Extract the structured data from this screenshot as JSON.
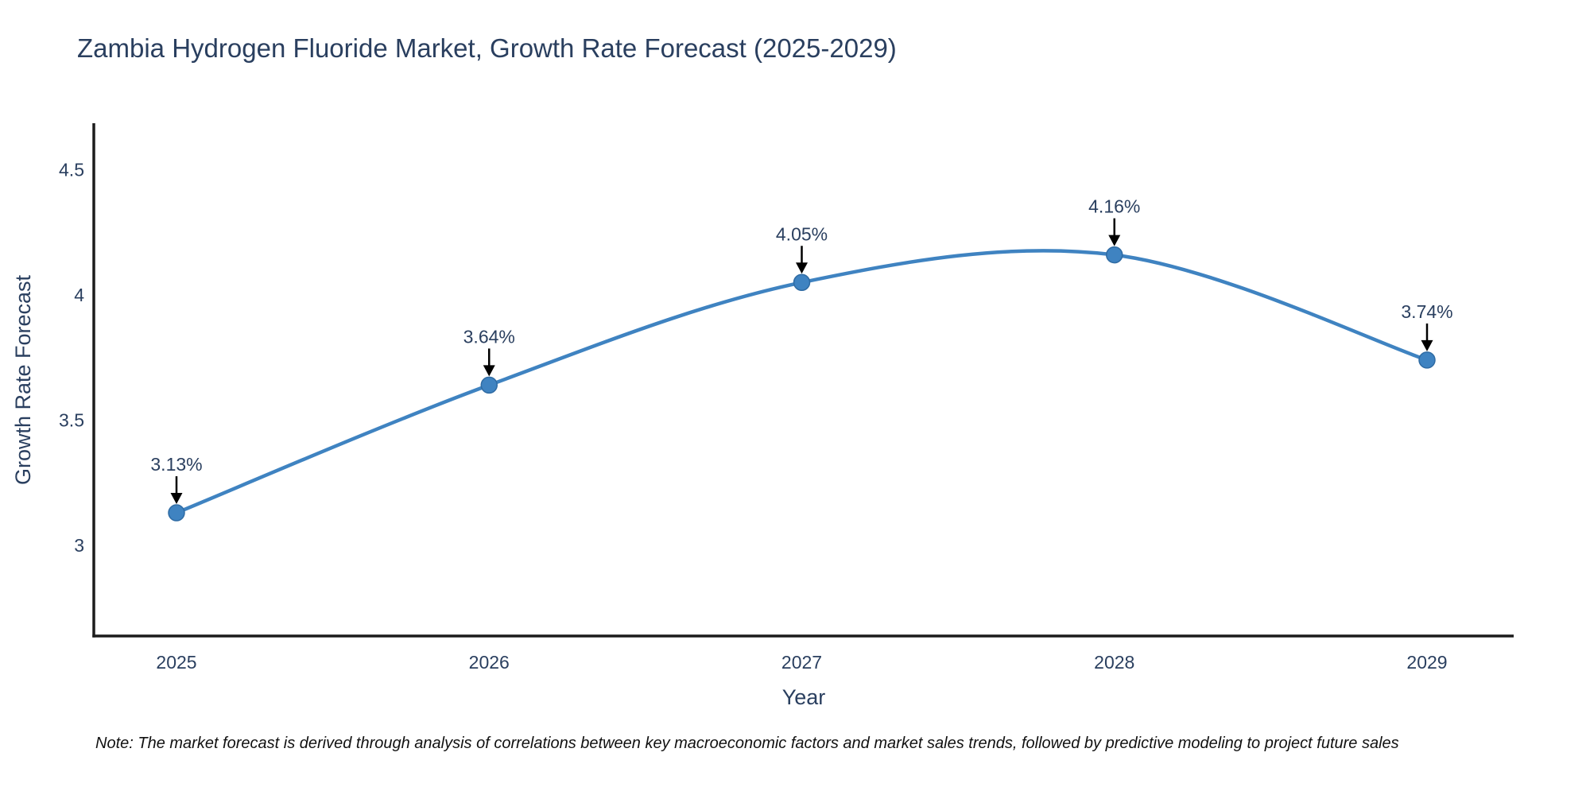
{
  "chart_data": {
    "type": "line",
    "title": "Zambia Hydrogen Fluoride Market, Growth Rate Forecast (2025-2029)",
    "xlabel": "Year",
    "ylabel": "Growth Rate Forecast",
    "x": [
      2025,
      2026,
      2027,
      2028,
      2029
    ],
    "series": [
      {
        "name": "Growth Rate Forecast",
        "values": [
          3.13,
          3.64,
          4.05,
          4.16,
          3.74
        ],
        "point_labels": [
          "3.13%",
          "3.64%",
          "4.05%",
          "4.16%",
          "3.74%"
        ]
      }
    ],
    "xticks": {
      "values": [
        2025,
        2026,
        2027,
        2028,
        2029
      ],
      "labels": [
        "2025",
        "2026",
        "2027",
        "2028",
        "2029"
      ]
    },
    "yticks": {
      "values": [
        3,
        3.5,
        4,
        4.5
      ],
      "labels": [
        "3",
        "3.5",
        "4",
        "4.5"
      ]
    },
    "xlim": [
      2024.73,
      2029.28
    ],
    "ylim": [
      2.64,
      4.69
    ],
    "grid": false,
    "legend_position": "none",
    "line_shape": "spline",
    "colors": {
      "line": "#3f83c1",
      "marker_fill": "#3f83c1",
      "marker_stroke": "#2f6ba3",
      "annotation_arrow": "#000000",
      "text": "#2a3f5f",
      "axis": "#1c1c1c",
      "background": "#ffffff"
    }
  },
  "note": "Note: The market forecast is derived through analysis of correlations between key macroeconomic factors and market sales trends, followed by predictive modeling to project future sales"
}
